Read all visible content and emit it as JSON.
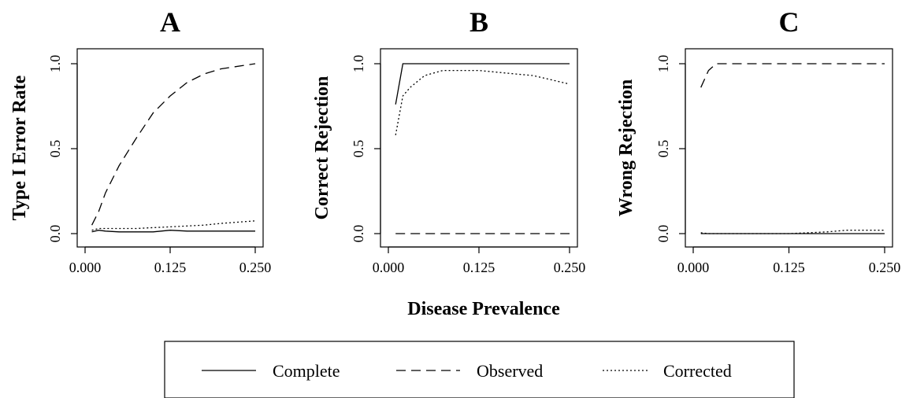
{
  "figure": {
    "xlabel": "Disease Prevalence"
  },
  "chart_data": [
    {
      "type": "line",
      "panel": "A",
      "title": "A",
      "ylabel": "Type I Error Rate",
      "xlim": [
        0,
        0.25
      ],
      "ylim": [
        0,
        1
      ],
      "xticks": [
        "0.000",
        "0.125",
        "0.250"
      ],
      "yticks": [
        "0.0",
        "0.5",
        "1.0"
      ],
      "series": [
        {
          "name": "Complete",
          "style": "solid",
          "x": [
            0.01,
            0.02,
            0.03,
            0.05,
            0.075,
            0.1,
            0.125,
            0.15,
            0.175,
            0.2,
            0.25
          ],
          "y": [
            0.01,
            0.02,
            0.015,
            0.01,
            0.01,
            0.01,
            0.02,
            0.015,
            0.015,
            0.015,
            0.015
          ]
        },
        {
          "name": "Observed",
          "style": "dashed",
          "x": [
            0.01,
            0.02,
            0.03,
            0.05,
            0.075,
            0.1,
            0.125,
            0.15,
            0.175,
            0.2,
            0.25
          ],
          "y": [
            0.05,
            0.13,
            0.24,
            0.4,
            0.56,
            0.71,
            0.81,
            0.89,
            0.94,
            0.97,
            1.0
          ]
        },
        {
          "name": "Corrected",
          "style": "dotted",
          "x": [
            0.01,
            0.02,
            0.03,
            0.05,
            0.075,
            0.1,
            0.125,
            0.15,
            0.175,
            0.2,
            0.25
          ],
          "y": [
            0.02,
            0.03,
            0.03,
            0.03,
            0.03,
            0.035,
            0.04,
            0.045,
            0.05,
            0.06,
            0.075
          ]
        }
      ]
    },
    {
      "type": "line",
      "panel": "B",
      "title": "B",
      "ylabel": "Correct Rejection",
      "xlim": [
        0,
        0.25
      ],
      "ylim": [
        0,
        1
      ],
      "xticks": [
        "0.000",
        "0.125",
        "0.250"
      ],
      "yticks": [
        "0.0",
        "0.5",
        "1.0"
      ],
      "series": [
        {
          "name": "Complete",
          "style": "solid",
          "x": [
            0.01,
            0.02,
            0.03,
            0.05,
            0.075,
            0.1,
            0.125,
            0.15,
            0.175,
            0.2,
            0.25
          ],
          "y": [
            0.76,
            1.0,
            1.0,
            1.0,
            1.0,
            1.0,
            1.0,
            1.0,
            1.0,
            1.0,
            1.0
          ]
        },
        {
          "name": "Observed",
          "style": "dashed",
          "x": [
            0.01,
            0.02,
            0.03,
            0.05,
            0.075,
            0.1,
            0.125,
            0.15,
            0.175,
            0.2,
            0.25
          ],
          "y": [
            0.0,
            0.0,
            0.0,
            0.0,
            0.0,
            0.0,
            0.0,
            0.0,
            0.0,
            0.0,
            0.0
          ]
        },
        {
          "name": "Corrected",
          "style": "dotted",
          "x": [
            0.01,
            0.02,
            0.03,
            0.05,
            0.075,
            0.1,
            0.125,
            0.15,
            0.175,
            0.2,
            0.25
          ],
          "y": [
            0.58,
            0.81,
            0.86,
            0.93,
            0.96,
            0.96,
            0.96,
            0.95,
            0.94,
            0.93,
            0.88
          ]
        }
      ]
    },
    {
      "type": "line",
      "panel": "C",
      "title": "C",
      "ylabel": "Wrong Rejection",
      "xlim": [
        0,
        0.25
      ],
      "ylim": [
        0,
        1
      ],
      "xticks": [
        "0.000",
        "0.125",
        "0.250"
      ],
      "yticks": [
        "0.0",
        "0.5",
        "1.0"
      ],
      "series": [
        {
          "name": "Complete",
          "style": "solid",
          "x": [
            0.01,
            0.02,
            0.03,
            0.05,
            0.075,
            0.1,
            0.125,
            0.15,
            0.175,
            0.2,
            0.25
          ],
          "y": [
            0.0,
            0.0,
            0.0,
            0.0,
            0.0,
            0.0,
            0.0,
            0.0,
            0.0,
            0.0,
            0.0
          ]
        },
        {
          "name": "Observed",
          "style": "dashed",
          "x": [
            0.01,
            0.02,
            0.03,
            0.05,
            0.075,
            0.1,
            0.125,
            0.15,
            0.175,
            0.2,
            0.25
          ],
          "y": [
            0.86,
            0.96,
            1.0,
            1.0,
            1.0,
            1.0,
            1.0,
            1.0,
            1.0,
            1.0,
            1.0
          ]
        },
        {
          "name": "Corrected",
          "style": "dotted",
          "x": [
            0.01,
            0.02,
            0.03,
            0.05,
            0.075,
            0.1,
            0.125,
            0.15,
            0.175,
            0.2,
            0.25
          ],
          "y": [
            0.005,
            0.0,
            0.0,
            0.0,
            0.0,
            0.0,
            0.0,
            0.005,
            0.01,
            0.02,
            0.02
          ]
        }
      ]
    }
  ],
  "legend": {
    "placement": "bottom-center",
    "entries": [
      {
        "label": "Complete",
        "style": "solid"
      },
      {
        "label": "Observed",
        "style": "dashed"
      },
      {
        "label": "Corrected",
        "style": "dotted"
      }
    ]
  }
}
